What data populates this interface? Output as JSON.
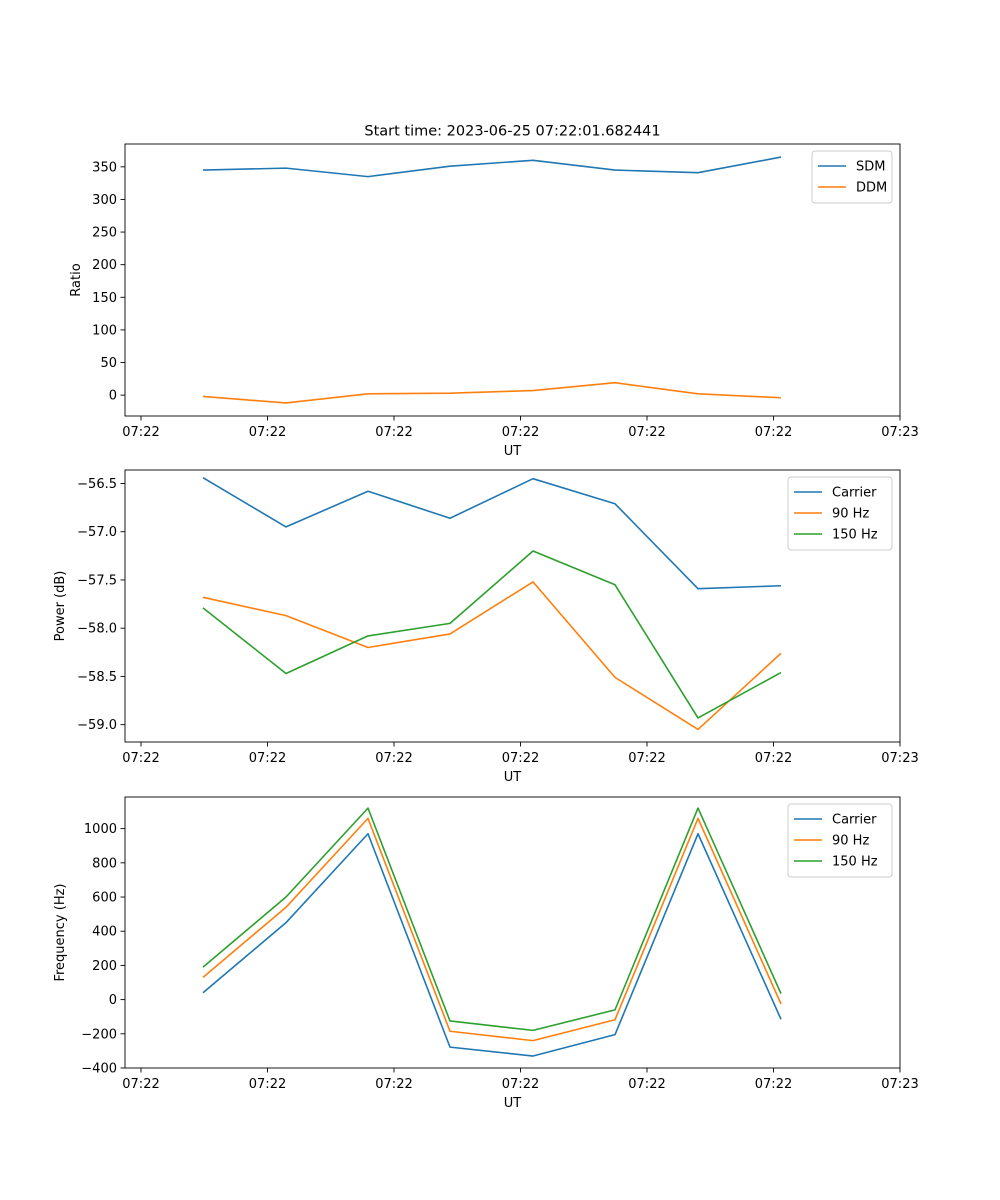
{
  "figure_title": "Start time: 2023-06-25 07:22:01.682441",
  "colors": {
    "blue": "#1f77b4",
    "orange": "#ff7f0e",
    "green": "#2ca02c"
  },
  "chart_data": [
    {
      "type": "line",
      "title": "Start time: 2023-06-25 07:22:01.682441",
      "xlabel": "UT",
      "ylabel": "Ratio",
      "x_tick_labels": [
        "07:22",
        "07:22",
        "07:22",
        "07:22",
        "07:22",
        "07:22",
        "07:23"
      ],
      "y_ticks": [
        0,
        50,
        100,
        150,
        200,
        250,
        300,
        350
      ],
      "ylim": [
        -32,
        385
      ],
      "legend_position": "top-right",
      "series": [
        {
          "name": "SDM",
          "color": "#1f77b4",
          "values": [
            345,
            348,
            335,
            351,
            360,
            345,
            341,
            365
          ]
        },
        {
          "name": "DDM",
          "color": "#ff7f0e",
          "values": [
            -2,
            -12,
            2,
            3,
            7,
            19,
            2,
            -4
          ]
        }
      ]
    },
    {
      "type": "line",
      "title": "",
      "xlabel": "UT",
      "ylabel": "Power (dB)",
      "x_tick_labels": [
        "07:22",
        "07:22",
        "07:22",
        "07:22",
        "07:22",
        "07:22",
        "07:23"
      ],
      "y_ticks": [
        -59.0,
        -58.5,
        -58.0,
        -57.5,
        -57.0,
        -56.5
      ],
      "y_tick_labels": [
        "−59.0",
        "−58.5",
        "−58.0",
        "−57.5",
        "−57.0",
        "−56.5"
      ],
      "ylim": [
        -59.18,
        -56.36
      ],
      "legend_position": "top-right",
      "series": [
        {
          "name": "Carrier",
          "color": "#1f77b4",
          "values": [
            -56.44,
            -56.95,
            -56.58,
            -56.86,
            -56.45,
            -56.71,
            -57.59,
            -57.56
          ]
        },
        {
          "name": "90 Hz",
          "color": "#ff7f0e",
          "values": [
            -57.68,
            -57.87,
            -58.2,
            -58.06,
            -57.52,
            -58.51,
            -59.05,
            -58.26
          ]
        },
        {
          "name": "150 Hz",
          "color": "#2ca02c",
          "values": [
            -57.79,
            -58.47,
            -58.08,
            -57.95,
            -57.2,
            -57.55,
            -58.93,
            -58.46
          ]
        }
      ]
    },
    {
      "type": "line",
      "title": "",
      "xlabel": "UT",
      "ylabel": "Frequency (Hz)",
      "x_tick_labels": [
        "07:22",
        "07:22",
        "07:22",
        "07:22",
        "07:22",
        "07:22",
        "07:23"
      ],
      "y_ticks": [
        -400,
        -200,
        0,
        200,
        400,
        600,
        800,
        1000
      ],
      "y_tick_labels": [
        "−400",
        "−200",
        "0",
        "200",
        "400",
        "600",
        "800",
        "1000"
      ],
      "ylim": [
        -400,
        1185
      ],
      "legend_position": "top-right",
      "series": [
        {
          "name": "Carrier",
          "color": "#1f77b4",
          "values": [
            40,
            450,
            970,
            -278,
            -330,
            -205,
            970,
            -115
          ]
        },
        {
          "name": "90 Hz",
          "color": "#ff7f0e",
          "values": [
            130,
            540,
            1060,
            -185,
            -240,
            -118,
            1060,
            -25
          ]
        },
        {
          "name": "150 Hz",
          "color": "#2ca02c",
          "values": [
            190,
            600,
            1120,
            -125,
            -180,
            -60,
            1120,
            35
          ]
        }
      ]
    }
  ]
}
